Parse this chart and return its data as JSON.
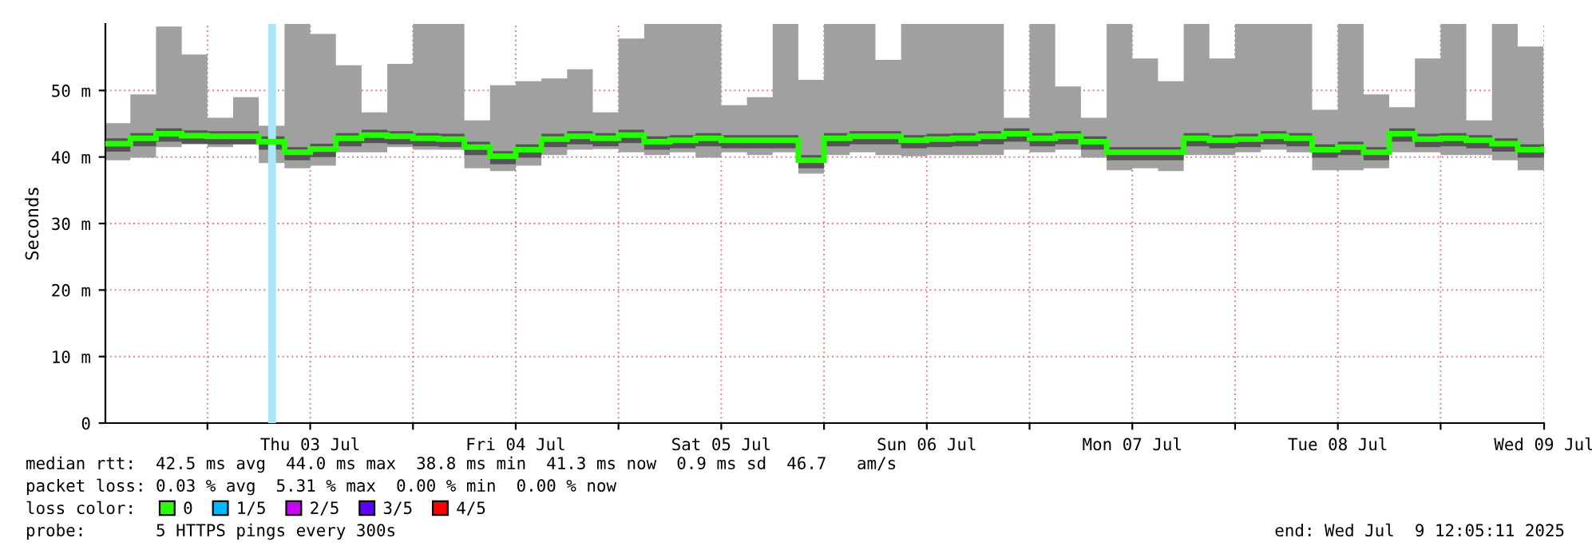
{
  "chart_data": {
    "type": "step",
    "ylabel": "Seconds",
    "x": [
      "2025-07-02T12:05",
      "2025-07-02T15:00",
      "2025-07-02T18:00",
      "2025-07-02T21:00",
      "2025-07-03T00:00",
      "2025-07-03T03:00",
      "2025-07-03T06:00",
      "2025-07-03T09:00",
      "2025-07-03T12:00",
      "2025-07-03T15:00",
      "2025-07-03T18:00",
      "2025-07-03T21:00",
      "2025-07-04T00:00",
      "2025-07-04T03:00",
      "2025-07-04T06:00",
      "2025-07-04T09:00",
      "2025-07-04T12:00",
      "2025-07-04T15:00",
      "2025-07-04T18:00",
      "2025-07-04T21:00",
      "2025-07-05T00:00",
      "2025-07-05T03:00",
      "2025-07-05T06:00",
      "2025-07-05T09:00",
      "2025-07-05T12:00",
      "2025-07-05T15:00",
      "2025-07-05T18:00",
      "2025-07-05T21:00",
      "2025-07-06T00:00",
      "2025-07-06T03:00",
      "2025-07-06T06:00",
      "2025-07-06T09:00",
      "2025-07-06T12:00",
      "2025-07-06T15:00",
      "2025-07-06T18:00",
      "2025-07-06T21:00",
      "2025-07-07T00:00",
      "2025-07-07T03:00",
      "2025-07-07T06:00",
      "2025-07-07T09:00",
      "2025-07-07T12:00",
      "2025-07-07T15:00",
      "2025-07-07T18:00",
      "2025-07-07T21:00",
      "2025-07-08T00:00",
      "2025-07-08T03:00",
      "2025-07-08T06:00",
      "2025-07-08T09:00",
      "2025-07-08T12:00",
      "2025-07-08T15:00",
      "2025-07-08T18:00",
      "2025-07-08T21:00",
      "2025-07-09T00:00",
      "2025-07-09T03:00",
      "2025-07-09T06:00",
      "2025-07-09T09:00",
      "2025-07-09T12:00"
    ],
    "series": [
      {
        "color": "#a0a0a0",
        "values": [
          null,
          null,
          null,
          null,
          null,
          null,
          null,
          null,
          null,
          null,
          null,
          null,
          null,
          null,
          null,
          null,
          null,
          null,
          null,
          null,
          null,
          null,
          null,
          null,
          null,
          null,
          null,
          null,
          null,
          null,
          null,
          null,
          null,
          null,
          null,
          null,
          null,
          null,
          null,
          null,
          null,
          null,
          null,
          null,
          null,
          null,
          null,
          null,
          null,
          null,
          null,
          null,
          null,
          null,
          null,
          null,
          null
        ],
        "upper": [
          45.1,
          49.4,
          59.6,
          55.4,
          45.9,
          49.0,
          44.7,
          60,
          58.5,
          53.8,
          46.7,
          54.0,
          60,
          60,
          45.5,
          50.8,
          51.4,
          51.8,
          53.2,
          46.7,
          57.8,
          60,
          60,
          60,
          47.8,
          49.0,
          60,
          51.6,
          60,
          60,
          54.6,
          60,
          60,
          60,
          60,
          45.9,
          60,
          50.6,
          45.9,
          60,
          54.8,
          51.4,
          60,
          54.8,
          60,
          60,
          60,
          47.1,
          60,
          49.4,
          47.5,
          54.8,
          60,
          45.5,
          60,
          56.6,
          44.3
        ],
        "lower": [
          39.5,
          39.9,
          41.5,
          41.9,
          41.5,
          41.9,
          39.1,
          38.3,
          38.7,
          40.7,
          40.7,
          41.5,
          41.1,
          41.1,
          38.3,
          37.9,
          38.7,
          40.3,
          41.1,
          41.2,
          40.7,
          40.3,
          40.7,
          39.9,
          40.7,
          40.3,
          40.7,
          37.5,
          40.3,
          40.7,
          40.3,
          40.1,
          40.3,
          40.3,
          40.3,
          41.1,
          40.7,
          41.1,
          39.9,
          38.0,
          38.3,
          37.9,
          40.3,
          40.3,
          40.7,
          41.1,
          40.7,
          38.0,
          38.0,
          38.3,
          40.7,
          40.7,
          40.3,
          40.3,
          39.5,
          38.0,
          38.0
        ]
      },
      {
        "color": "#555555",
        "values": [
          null,
          null,
          null,
          null,
          null,
          null,
          null,
          null,
          null,
          null,
          null,
          null,
          null,
          null,
          null,
          null,
          null,
          null,
          null,
          null,
          null,
          null,
          null,
          null,
          null,
          null,
          null,
          null,
          null,
          null,
          null,
          null,
          null,
          null,
          null,
          null,
          null,
          null,
          null,
          null,
          null,
          null,
          null,
          null,
          null,
          null,
          null,
          null,
          null,
          null,
          null,
          null,
          null,
          null,
          null,
          null,
          null
        ],
        "upper": [
          42.8,
          43.6,
          44.3,
          44.0,
          43.9,
          43.9,
          43.1,
          41.5,
          42.0,
          43.6,
          44.1,
          43.9,
          43.6,
          43.5,
          42.3,
          40.9,
          41.9,
          43.5,
          43.9,
          43.6,
          44.1,
          43.1,
          43.3,
          43.6,
          43.3,
          43.3,
          43.3,
          40.3,
          43.6,
          43.9,
          43.9,
          43.3,
          43.5,
          43.6,
          43.9,
          44.3,
          43.6,
          43.9,
          43.1,
          41.5,
          41.5,
          41.5,
          43.6,
          43.3,
          43.5,
          43.9,
          43.6,
          41.9,
          42.3,
          41.5,
          44.3,
          43.5,
          43.6,
          43.3,
          42.8,
          41.9,
          42.0
        ],
        "lower": [
          40.8,
          41.6,
          42.3,
          42.0,
          41.9,
          41.9,
          41.1,
          39.5,
          40.0,
          41.6,
          42.1,
          41.9,
          41.6,
          41.5,
          40.3,
          38.9,
          39.9,
          41.5,
          41.9,
          41.6,
          42.1,
          41.1,
          41.3,
          41.6,
          41.3,
          41.3,
          41.3,
          38.3,
          41.6,
          41.9,
          41.9,
          41.3,
          41.5,
          41.6,
          41.9,
          42.3,
          41.6,
          41.9,
          41.1,
          39.5,
          39.5,
          39.5,
          41.6,
          41.3,
          41.5,
          41.9,
          41.6,
          39.9,
          40.3,
          39.5,
          42.3,
          41.5,
          41.6,
          41.3,
          40.8,
          39.9,
          40.0
        ]
      },
      {
        "name": "0",
        "color": "#26ff00",
        "values": [
          42.0,
          42.8,
          43.5,
          43.2,
          43.1,
          43.1,
          42.3,
          40.7,
          41.2,
          42.8,
          43.3,
          43.1,
          42.8,
          42.7,
          41.5,
          40.1,
          41.1,
          42.7,
          43.1,
          42.8,
          43.3,
          42.3,
          42.5,
          42.8,
          42.5,
          42.5,
          42.5,
          39.5,
          42.8,
          43.1,
          43.1,
          42.5,
          42.7,
          42.8,
          43.1,
          43.5,
          42.8,
          43.1,
          42.3,
          40.7,
          40.7,
          40.7,
          42.8,
          42.5,
          42.7,
          43.1,
          42.8,
          41.1,
          41.5,
          40.7,
          43.5,
          42.7,
          42.8,
          42.5,
          42.0,
          41.1,
          41.2
        ]
      },
      {
        "name": "1/5",
        "color": "#00b8ff",
        "values": [
          null,
          null,
          null,
          null,
          null,
          null,
          null,
          null,
          null,
          null,
          null,
          null,
          null,
          null,
          null,
          null,
          null,
          null,
          null,
          null,
          null,
          null,
          null,
          null,
          null,
          null,
          null,
          null,
          null,
          null,
          null,
          null,
          null,
          null,
          null,
          null,
          null,
          null,
          null,
          null,
          null,
          null,
          null,
          null,
          null,
          null,
          null,
          null,
          null,
          null,
          null,
          null,
          null,
          null,
          null,
          null,
          null
        ]
      },
      {
        "name": "2/5",
        "color": "#cc00ff",
        "values": [
          null,
          null,
          null,
          null,
          null,
          null,
          null,
          null,
          null,
          null,
          null,
          null,
          null,
          null,
          null,
          null,
          null,
          null,
          null,
          null,
          null,
          null,
          null,
          null,
          null,
          null,
          null,
          null,
          null,
          null,
          null,
          null,
          null,
          null,
          null,
          null,
          null,
          null,
          null,
          null,
          null,
          null,
          null,
          null,
          null,
          null,
          null,
          null,
          null,
          null,
          null,
          null,
          null,
          null,
          null,
          null,
          null
        ]
      },
      {
        "name": "3/5",
        "color": "#5e00ff",
        "values": [
          null,
          null,
          null,
          null,
          null,
          null,
          null,
          null,
          null,
          null,
          null,
          null,
          null,
          null,
          null,
          null,
          null,
          null,
          null,
          null,
          null,
          null,
          null,
          null,
          null,
          null,
          null,
          null,
          null,
          null,
          null,
          null,
          null,
          null,
          null,
          null,
          null,
          null,
          null,
          null,
          null,
          null,
          null,
          null,
          null,
          null,
          null,
          null,
          null,
          null,
          null,
          null,
          null,
          null,
          null,
          null,
          null
        ]
      },
      {
        "name": "4/5",
        "color": "#ff0000",
        "values": [
          null,
          null,
          null,
          null,
          null,
          null,
          null,
          null,
          null,
          null,
          null,
          null,
          null,
          null,
          null,
          null,
          null,
          null,
          null,
          null,
          null,
          null,
          null,
          null,
          null,
          null,
          null,
          null,
          null,
          null,
          null,
          null,
          null,
          null,
          null,
          null,
          null,
          null,
          null,
          null,
          null,
          null,
          null,
          null,
          null,
          null,
          null,
          null,
          null,
          null,
          null,
          null,
          null,
          null,
          null,
          null,
          null
        ]
      }
    ],
    "bands": [
      {
        "axis": "x",
        "from": "2025-07-03T07:05",
        "to": "2025-07-03T08:00",
        "color": "#a8e6fb"
      }
    ],
    "xlim": [
      "2025-07-02T12:05",
      "2025-07-09T12:05"
    ],
    "xticks": [
      {
        "value": "2025-07-03T00:00",
        "label": null
      },
      {
        "value": "2025-07-03T12:00",
        "label": "Thu 03 Jul"
      },
      {
        "value": "2025-07-04T00:00",
        "label": null
      },
      {
        "value": "2025-07-04T12:00",
        "label": "Fri 04 Jul"
      },
      {
        "value": "2025-07-05T00:00",
        "label": null
      },
      {
        "value": "2025-07-05T12:00",
        "label": "Sat 05 Jul"
      },
      {
        "value": "2025-07-06T00:00",
        "label": null
      },
      {
        "value": "2025-07-06T12:00",
        "label": "Sun 06 Jul"
      },
      {
        "value": "2025-07-07T00:00",
        "label": null
      },
      {
        "value": "2025-07-07T12:00",
        "label": "Mon 07 Jul"
      },
      {
        "value": "2025-07-08T00:00",
        "label": null
      },
      {
        "value": "2025-07-08T12:00",
        "label": "Tue 08 Jul"
      },
      {
        "value": "2025-07-09T00:00",
        "label": null
      },
      {
        "value": "2025-07-09T12:05",
        "label": "Wed 09 Jul"
      }
    ],
    "ylim": [
      0,
      60
    ],
    "yticks": [
      0,
      {
        "value": 10,
        "label": "10 m"
      },
      {
        "value": 20,
        "label": "20 m"
      },
      {
        "value": 30,
        "label": "30 m"
      },
      {
        "value": 40,
        "label": "40 m"
      },
      {
        "value": 50,
        "label": "50 m"
      }
    ],
    "grid": true,
    "legend": "bottom",
    "legend_title": "loss color:",
    "annotations": [
      "median rtt:  42.5 ms avg  44.0 ms max  38.8 ms min  41.3 ms now  0.9 ms sd  46.7   am/s",
      "packet loss: 0.03 % avg  5.31 % max  0.00 % min  0.00 % now",
      "probe:       5 HTTPS pings every 300s",
      "end: Wed Jul  9 12:05:11 2025"
    ]
  }
}
